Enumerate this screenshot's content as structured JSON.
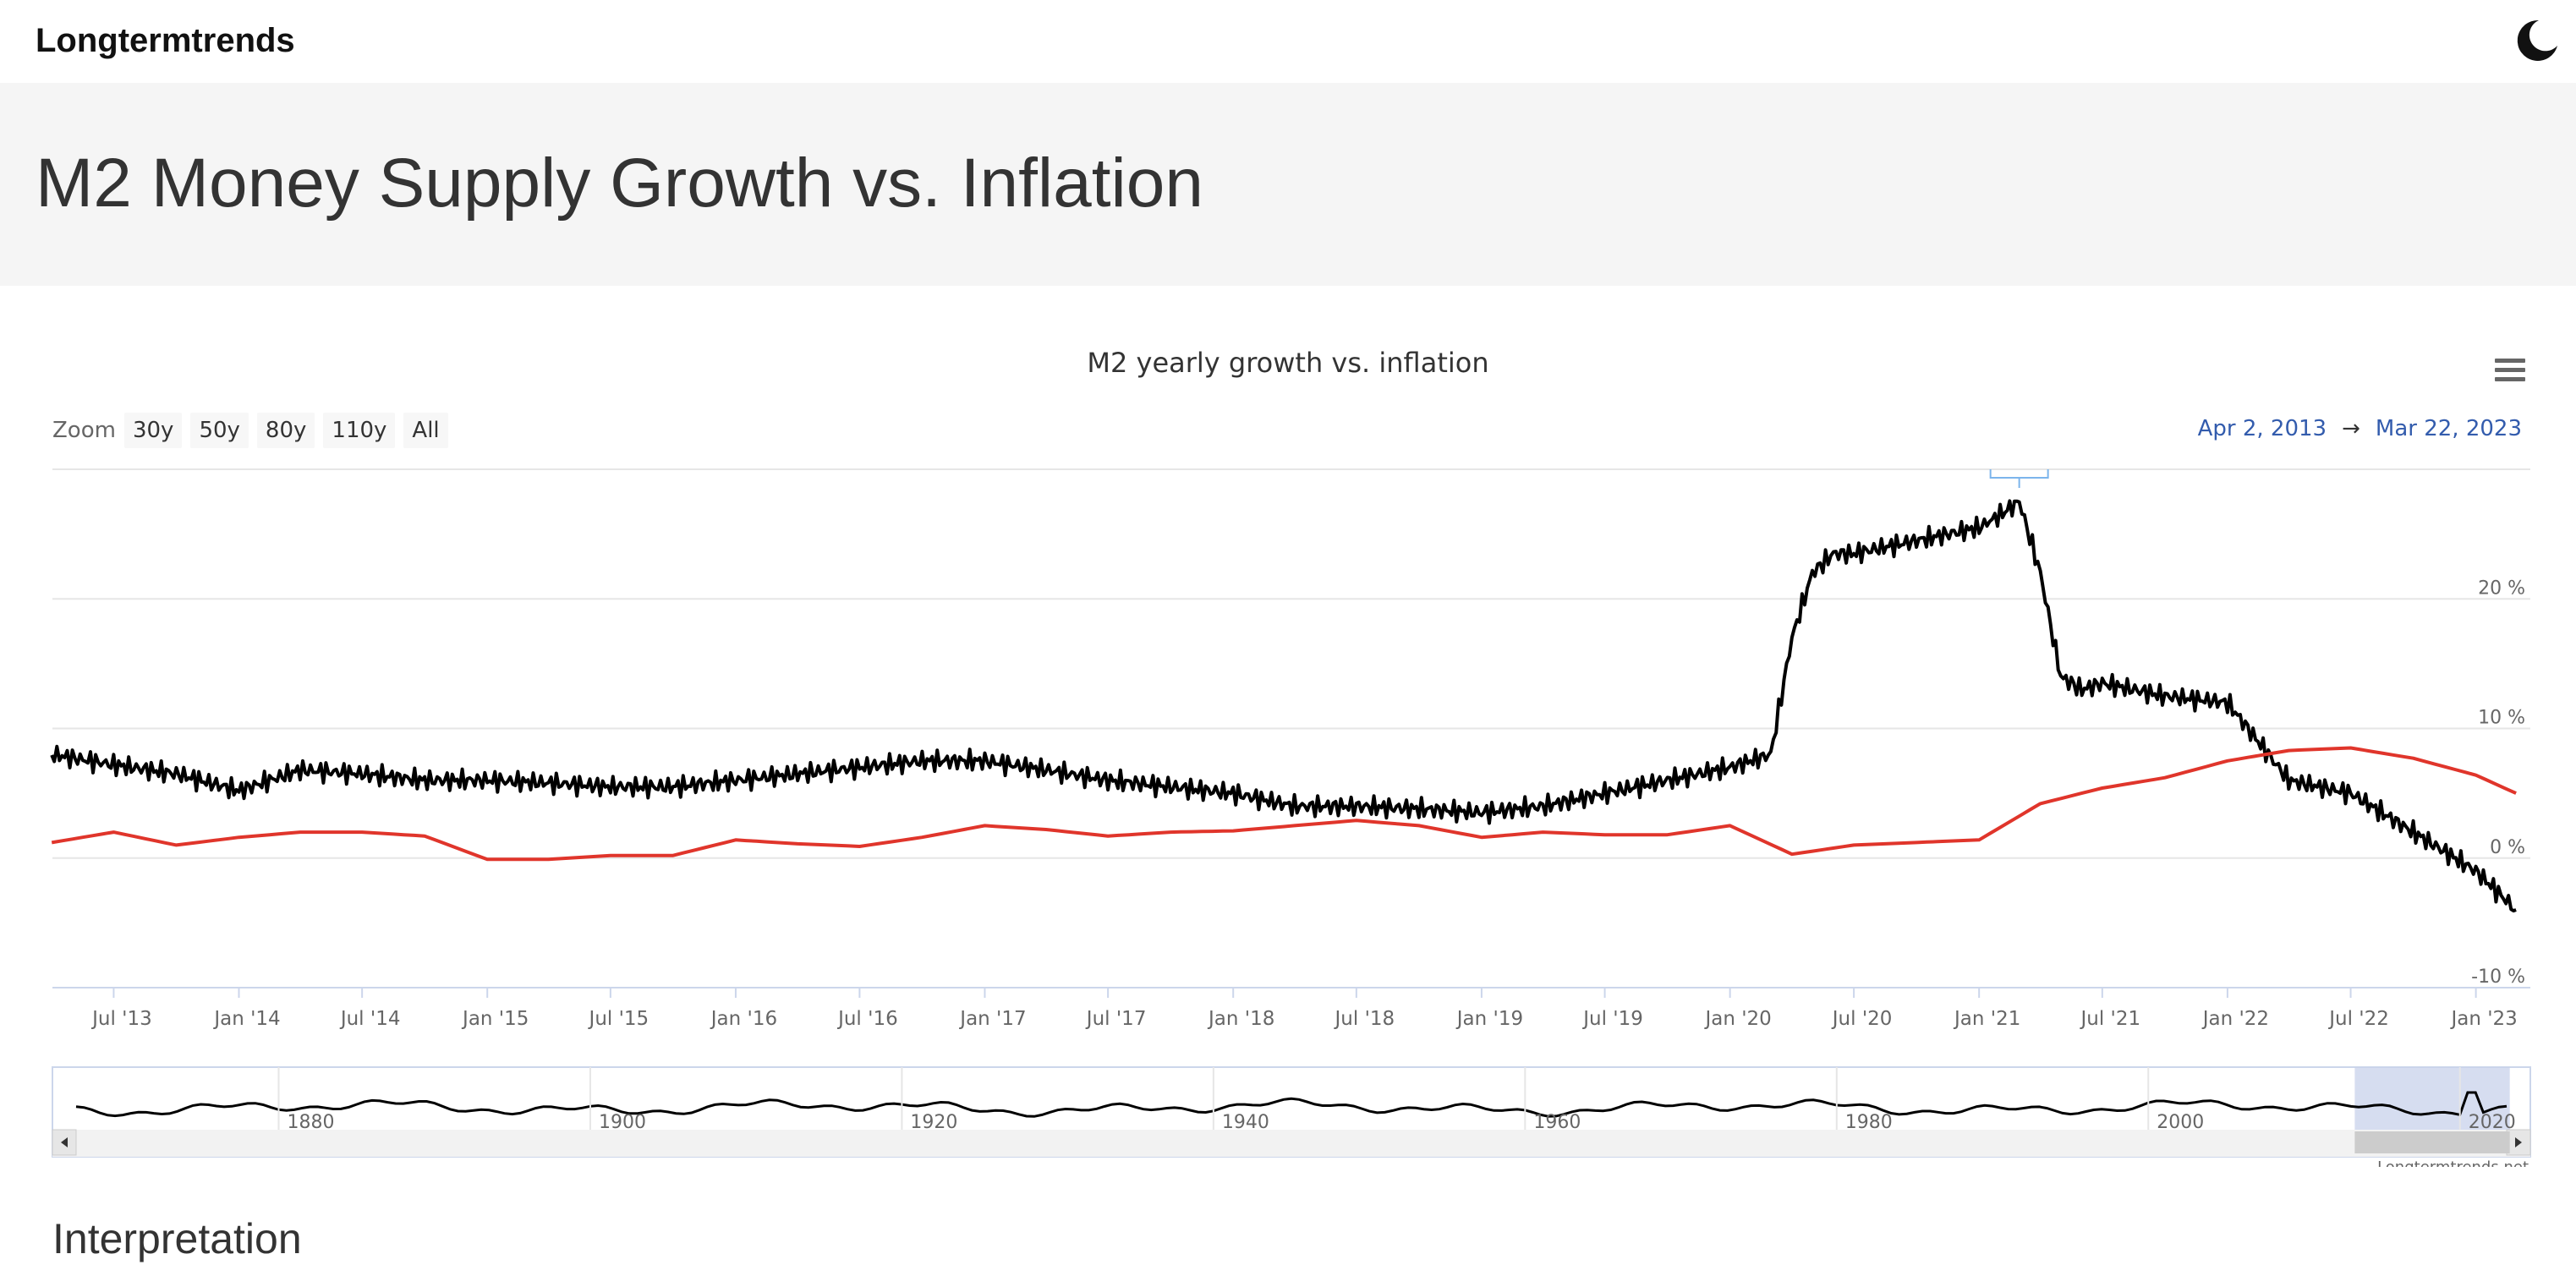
{
  "header": {
    "brand": "Longtermtrends"
  },
  "page": {
    "title": "M2 Money Supply Growth vs. Inflation"
  },
  "chart_toolbar": {
    "zoom_label": "Zoom",
    "zoom_buttons": [
      "30y",
      "50y",
      "80y",
      "110y",
      "All"
    ],
    "range_from": "Apr 2, 2013",
    "range_arrow": "→",
    "range_to": "Mar 22, 2023"
  },
  "credit": "Longtermtrends.net",
  "interpretation_heading": "Interpretation",
  "colors": {
    "m2": "#000000",
    "inflation": "#e0352b",
    "navigator_mask": "#c8d2eb"
  },
  "icons": [
    "moon-icon",
    "menu-icon"
  ],
  "chart_data": {
    "type": "line",
    "title": "M2 yearly growth vs. inflation",
    "xlabel": "",
    "ylabel": "",
    "x_range": [
      "2013-04-02",
      "2023-03-22"
    ],
    "ylim": [
      -10,
      30
    ],
    "y_ticks": [
      -10,
      0,
      10,
      20
    ],
    "y_tick_labels": [
      "-10 %",
      "0 %",
      "10 %",
      "20 %"
    ],
    "x_tick_labels": [
      "Jul '13",
      "Jan '14",
      "Jul '14",
      "Jan '15",
      "Jul '15",
      "Jan '16",
      "Jul '16",
      "Jan '17",
      "Jul '17",
      "Jan '18",
      "Jul '18",
      "Jan '19",
      "Jul '19",
      "Jan '20",
      "Jul '20",
      "Jan '21",
      "Jul '21",
      "Jan '22",
      "Jul '22",
      "Jan '23"
    ],
    "grid": true,
    "legend": "none",
    "series": [
      {
        "color": "#000000",
        "x": [
          "2013-04",
          "2013-07",
          "2013-10",
          "2014-01",
          "2014-04",
          "2014-07",
          "2014-10",
          "2015-01",
          "2015-04",
          "2015-07",
          "2015-10",
          "2016-01",
          "2016-04",
          "2016-07",
          "2016-10",
          "2017-01",
          "2017-04",
          "2017-07",
          "2017-10",
          "2018-01",
          "2018-04",
          "2018-07",
          "2018-10",
          "2019-01",
          "2019-04",
          "2019-07",
          "2019-10",
          "2020-01",
          "2020-03",
          "2020-04",
          "2020-05",
          "2020-06",
          "2020-07",
          "2020-10",
          "2021-01",
          "2021-02",
          "2021-03",
          "2021-04",
          "2021-05",
          "2021-06",
          "2021-07",
          "2021-10",
          "2022-01",
          "2022-04",
          "2022-07",
          "2022-10",
          "2023-01",
          "2023-03"
        ],
        "values": [
          8.0,
          7.2,
          6.5,
          5.2,
          6.8,
          6.5,
          6.0,
          6.0,
          5.8,
          5.5,
          5.5,
          6.0,
          6.5,
          7.0,
          7.5,
          7.5,
          6.8,
          6.0,
          5.5,
          5.0,
          4.0,
          4.0,
          3.8,
          3.5,
          4.0,
          5.0,
          6.0,
          7.0,
          8.0,
          17.0,
          22.0,
          23.5,
          23.5,
          24.5,
          25.5,
          26.5,
          27.5,
          22.0,
          14.0,
          13.0,
          13.5,
          12.5,
          12.0,
          6.0,
          5.0,
          2.0,
          -1.0,
          -4.0
        ]
      },
      {
        "color": "#e0352b",
        "x": [
          "2013-04",
          "2013-07",
          "2013-10",
          "2014-01",
          "2014-04",
          "2014-07",
          "2014-10",
          "2015-01",
          "2015-04",
          "2015-07",
          "2015-10",
          "2016-01",
          "2016-04",
          "2016-07",
          "2016-10",
          "2017-01",
          "2017-04",
          "2017-07",
          "2017-10",
          "2018-01",
          "2018-04",
          "2018-07",
          "2018-10",
          "2019-01",
          "2019-04",
          "2019-07",
          "2019-10",
          "2020-01",
          "2020-04",
          "2020-07",
          "2020-10",
          "2021-01",
          "2021-04",
          "2021-07",
          "2021-10",
          "2022-01",
          "2022-04",
          "2022-07",
          "2022-10",
          "2023-01",
          "2023-03"
        ],
        "values": [
          1.2,
          2.0,
          1.0,
          1.6,
          2.0,
          2.0,
          1.7,
          -0.1,
          -0.1,
          0.2,
          0.2,
          1.4,
          1.1,
          0.9,
          1.6,
          2.5,
          2.2,
          1.7,
          2.0,
          2.1,
          2.5,
          2.9,
          2.5,
          1.6,
          2.0,
          1.8,
          1.8,
          2.5,
          0.3,
          1.0,
          1.2,
          1.4,
          4.2,
          5.4,
          6.2,
          7.5,
          8.3,
          8.5,
          7.7,
          6.4,
          5.0
        ]
      }
    ],
    "navigator": {
      "x_tick_labels": [
        "1880",
        "1900",
        "1920",
        "1940",
        "1960",
        "1980",
        "2000",
        "2020"
      ],
      "x_range": [
        1867,
        2023
      ],
      "selected_range": [
        "2013-04-02",
        "2023-03-22"
      ]
    }
  }
}
